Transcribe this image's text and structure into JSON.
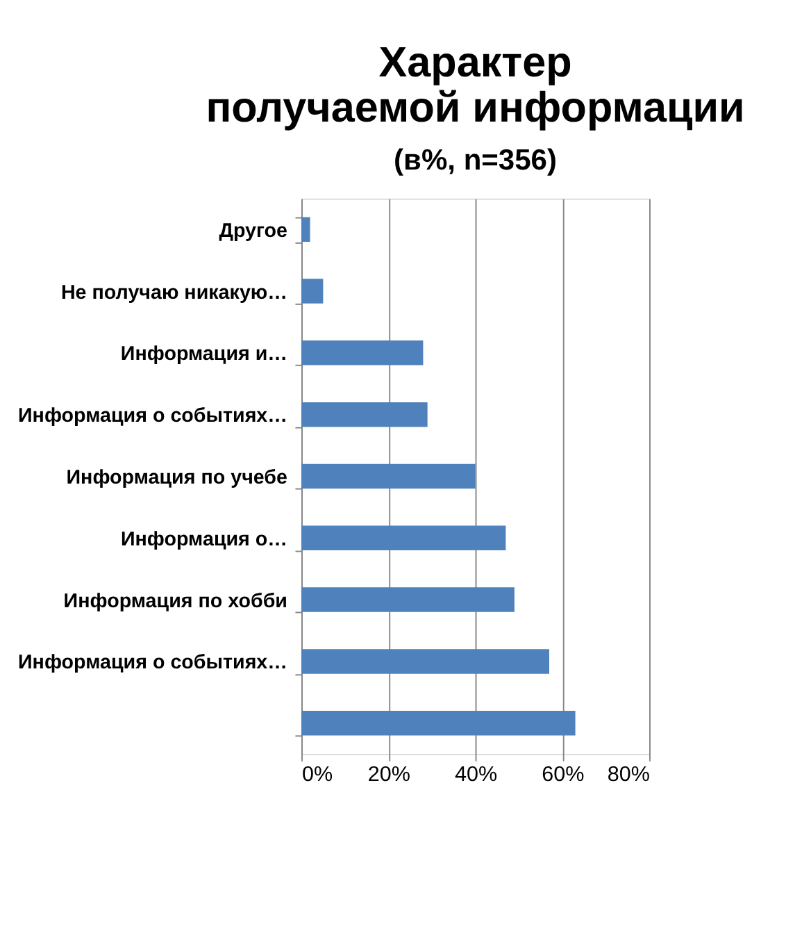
{
  "chart_data": {
    "type": "bar",
    "orientation": "horizontal",
    "title": "Характер получаемой информации",
    "subtitle": "(в%, n=356)",
    "categories": [
      "Другое",
      "Не получаю никакую…",
      "Информация и…",
      "Информация о событиях…",
      "Информация по учебе",
      "Информация о…",
      "Информация по хобби",
      "Информация о событиях…",
      null
    ],
    "values": [
      2,
      5,
      28,
      29,
      40,
      47,
      49,
      57,
      63
    ],
    "color": "#4f81bd",
    "xlim": [
      0,
      80
    ],
    "xticks": [
      {
        "value": 0,
        "label": "0%"
      },
      {
        "value": 20,
        "label": "20%"
      },
      {
        "value": 40,
        "label": "40%"
      },
      {
        "value": 60,
        "label": "60%"
      },
      {
        "value": 80,
        "label": "80%"
      }
    ],
    "grid": "x"
  }
}
